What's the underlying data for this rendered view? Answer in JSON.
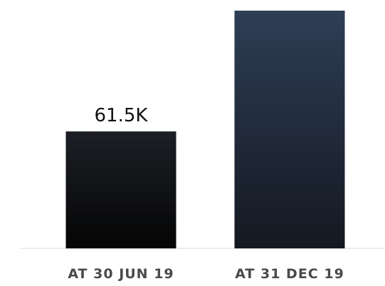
{
  "chart_data": {
    "type": "bar",
    "categories": [
      "AT 30 JUN 19",
      "AT 31 DEC 19"
    ],
    "values": [
      61.5,
      125
    ],
    "data_labels": [
      "61.5K",
      ""
    ],
    "value_unit": "K",
    "ylim": [
      0,
      125
    ],
    "grid": false,
    "legend": "none",
    "colors": {
      "bar_gradient_top": [
        "#1c1f25",
        "#2e3e55"
      ],
      "bar_gradient_bottom": [
        "#050505",
        "#141821"
      ],
      "axis": "#dcdcdc",
      "tick_label": "#4a4a4a",
      "data_label": "#111111"
    }
  }
}
